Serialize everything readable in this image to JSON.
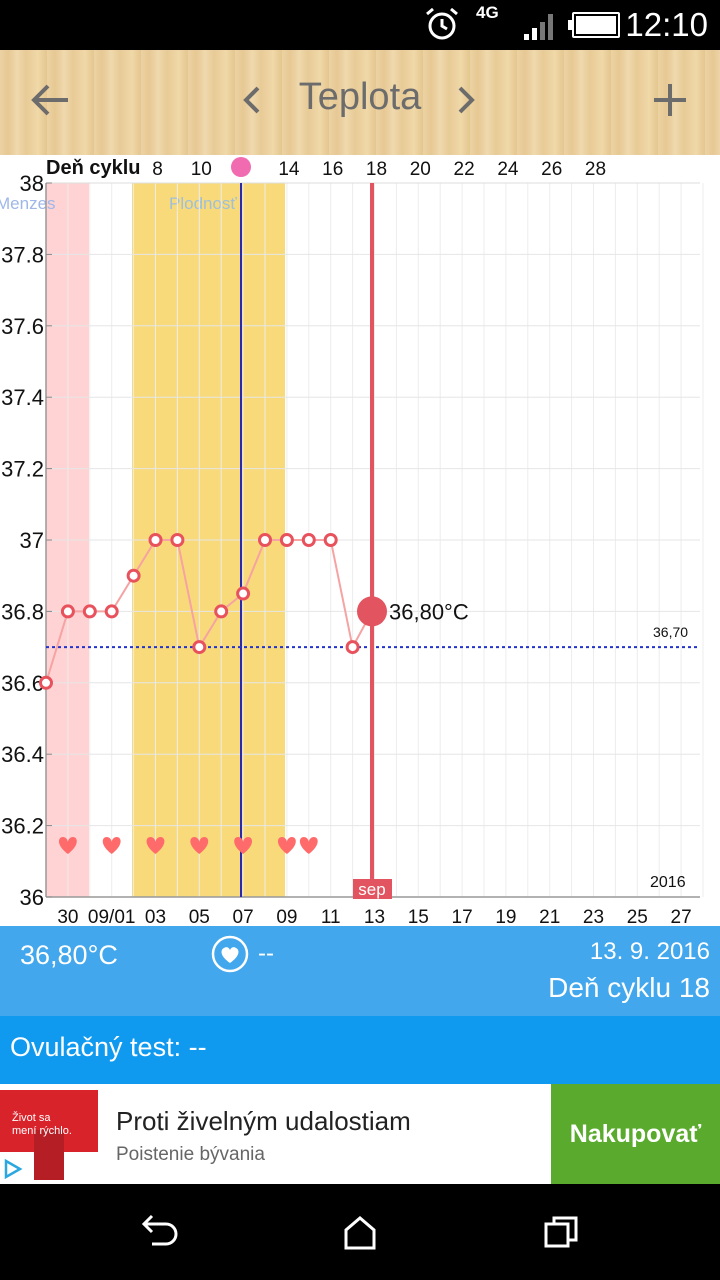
{
  "status_bar": {
    "time": "12:10",
    "network": "4G"
  },
  "toolbar": {
    "title": "Teplota"
  },
  "chart_data": {
    "type": "line",
    "top_axis_label": "Deň cyklu",
    "top_ticks": [
      "8",
      "10",
      "14",
      "16",
      "18",
      "20",
      "22",
      "24",
      "26",
      "28"
    ],
    "bottom_ticks": [
      "30",
      "09/01",
      "03",
      "05",
      "07",
      "09",
      "11",
      "13",
      "15",
      "17",
      "19",
      "21",
      "23",
      "25",
      "27"
    ],
    "y_ticks": [
      "38",
      "37.8",
      "37.6",
      "37.4",
      "37.2",
      "37",
      "36.8",
      "36.6",
      "36.4",
      "36.2",
      "36"
    ],
    "ylim": [
      36,
      38
    ],
    "temperatures": [
      36.6,
      36.8,
      36.8,
      36.8,
      36.9,
      37.0,
      37.0,
      36.7,
      36.8,
      36.85,
      37.0,
      37.0,
      37.0,
      37.0,
      36.7
    ],
    "current_value": 36.8,
    "current_label": "36,80°C",
    "baseline_value": 36.7,
    "baseline_label": "36,70",
    "year_label": "2016",
    "month_label": "sep",
    "menses_label": "Menzes",
    "fertility_label": "Plodnosť",
    "intercourse_days": [
      1,
      3,
      5,
      7,
      9,
      11,
      12
    ]
  },
  "info": {
    "temperature": "36,80°C",
    "intercourse_value": "--",
    "date": "13. 9. 2016",
    "cycle_day": "Deň cyklu 18"
  },
  "ovulation": {
    "text": "Ovulačný test: --"
  },
  "ad": {
    "logo_text_1": "Život sa",
    "logo_text_2": "mení rýchlo.",
    "headline": "Proti živelným udalostiam",
    "subline": "Poistenie bývania",
    "cta": "Nakupovať"
  },
  "colors": {
    "info_bg": "#42a7ec",
    "ovulation_bg": "#0f9af0",
    "cta_bg": "#5aab2d",
    "temp_line": "#f5a3a3",
    "marker": "#e8525d",
    "fertile": "#f9da7a",
    "menses": "#ffd3d3"
  }
}
